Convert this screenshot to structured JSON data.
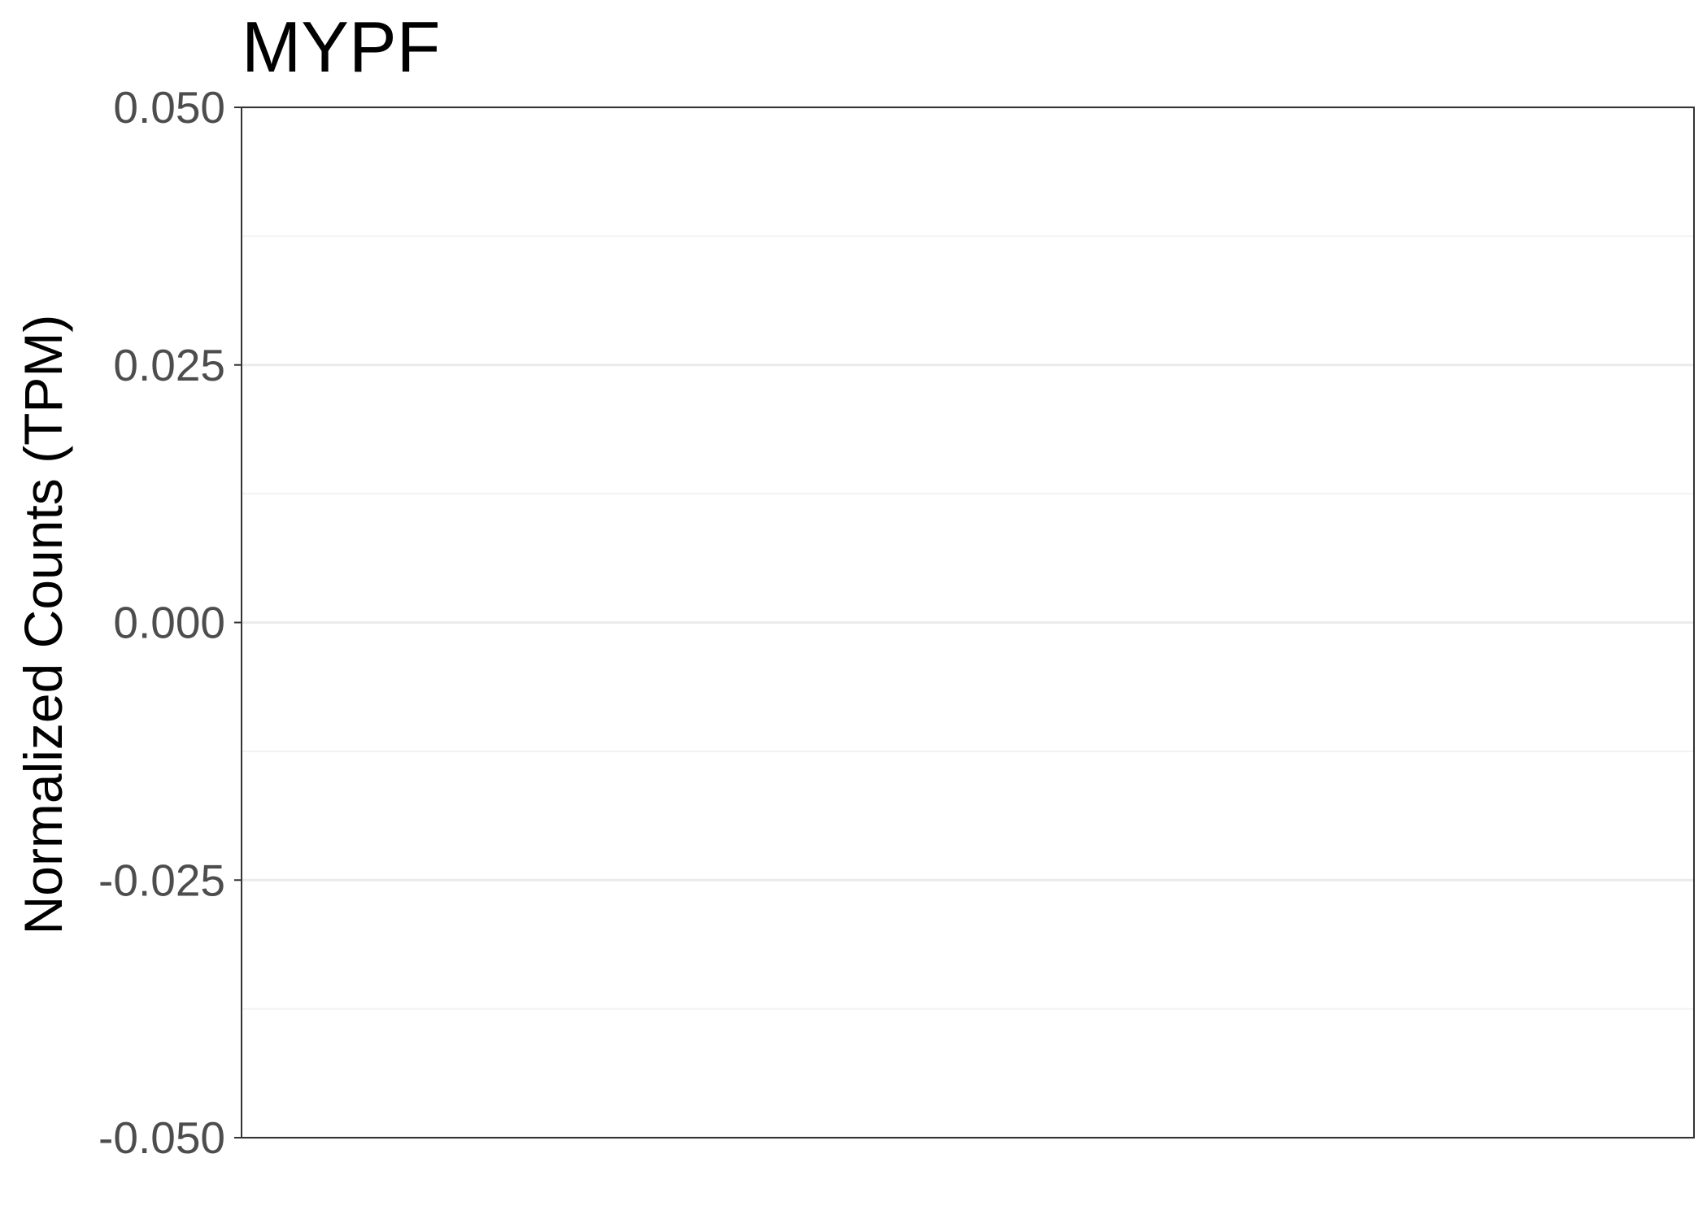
{
  "chart_data": {
    "type": "scatter",
    "title": "MYPF",
    "xlabel": "",
    "ylabel": "Normalized Counts (TPM)",
    "ylim": [
      -0.05,
      0.05
    ],
    "y_ticks": [
      -0.05,
      -0.025,
      0.0,
      0.025,
      0.05
    ],
    "y_tick_labels": [
      "-0.050",
      "-0.025",
      "0.000",
      "0.025",
      "0.050"
    ],
    "y_minor_ticks": [
      -0.0375,
      -0.0125,
      0.0125,
      0.0375
    ],
    "categories": [],
    "series": [],
    "grid": true,
    "legend": "none",
    "colors": {
      "panel_border": "#333333",
      "major_grid": "#ebebeb",
      "minor_grid": "#f2f2f2",
      "tick_text": "#4d4d4d",
      "title_text": "#000000"
    }
  }
}
